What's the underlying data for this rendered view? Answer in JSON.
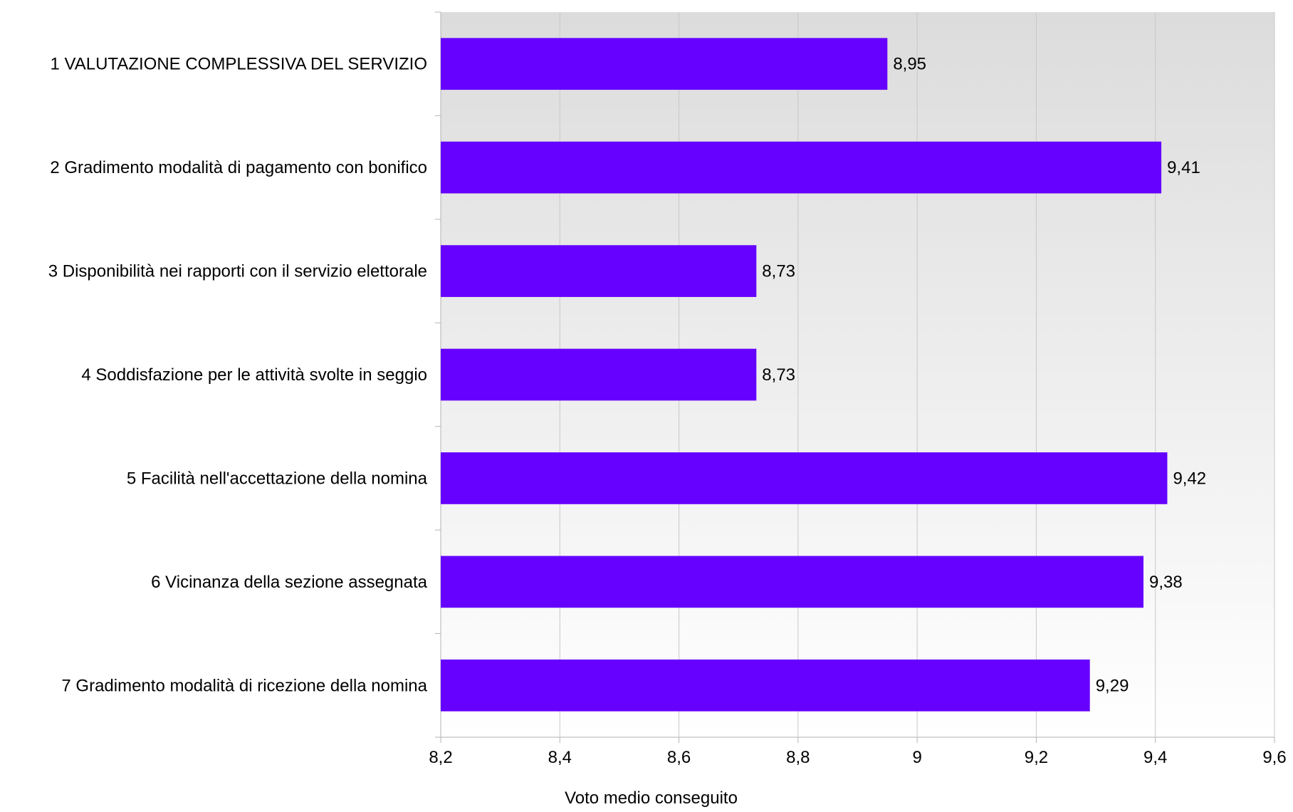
{
  "chart_data": {
    "type": "bar",
    "orientation": "horizontal",
    "categories": [
      "1 VALUTAZIONE COMPLESSIVA DEL SERVIZIO",
      "2 Gradimento modalità di pagamento con bonifico",
      "3 Disponibilità nei rapporti con il servizio elettorale",
      "4 Soddisfazione per le attività svolte in seggio",
      "5 Facilità nell'accettazione della nomina",
      "6 Vicinanza della sezione assegnata",
      "7 Gradimento modalità di ricezione della nomina"
    ],
    "values": [
      8.95,
      9.41,
      8.73,
      8.73,
      9.42,
      9.38,
      9.29
    ],
    "value_labels": [
      "8,95",
      "9,41",
      "8,73",
      "8,73",
      "9,42",
      "9,38",
      "9,29"
    ],
    "xlabel": "Voto medio conseguito",
    "xlim": [
      8.2,
      9.6
    ],
    "x_ticks": [
      8.2,
      8.4,
      8.6,
      8.8,
      9.0,
      9.2,
      9.4,
      9.6
    ],
    "x_tick_labels": [
      "8,2",
      "8,4",
      "8,6",
      "8,8",
      "9",
      "9,2",
      "9,4",
      "9,6"
    ],
    "grid": "vertical",
    "legend": "none",
    "bar_color": "#6600ff",
    "background_gradient": [
      "#dcdcdc",
      "#ffffff"
    ],
    "grid_color": "#c8c8c8"
  }
}
